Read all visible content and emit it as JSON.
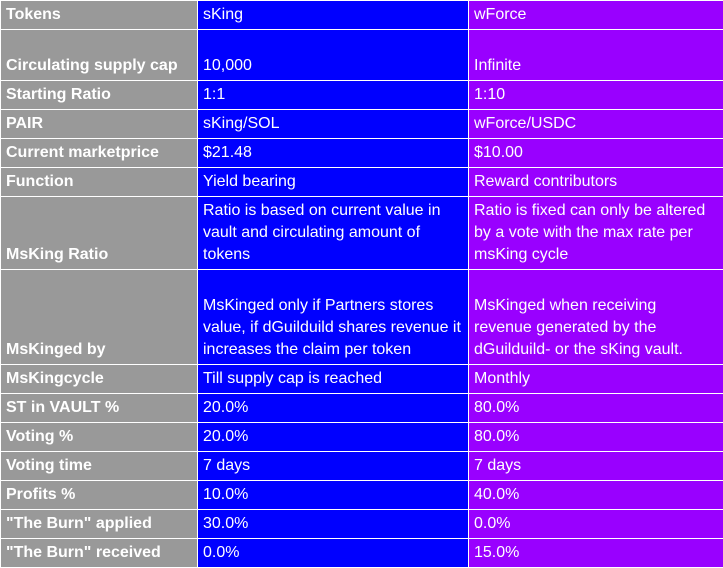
{
  "colors": {
    "label_bg": "#999999",
    "sking_bg": "#0000ff",
    "wforce_bg": "#9900ff",
    "text": "#ffffff"
  },
  "rows": [
    {
      "label": "Tokens",
      "sking": "sKing",
      "wforce": "wForce"
    },
    {
      "label": "Circulating supply cap",
      "sking": "10,000",
      "wforce": "Infinite"
    },
    {
      "label": "Starting Ratio",
      "sking": "1:1",
      "wforce": "1:10"
    },
    {
      "label": "PAIR",
      "sking": "sKing/SOL",
      "wforce": "wForce/USDC"
    },
    {
      "label": "Current marketprice",
      "sking": "$21.48",
      "wforce": "$10.00"
    },
    {
      "label": "Function",
      "sking": "Yield bearing",
      "wforce": "Reward contributors"
    },
    {
      "label": "MsKing Ratio",
      "sking": "Ratio is based on current value in vault and circulating amount of tokens",
      "wforce": "Ratio is fixed can only be altered by a vote with the max rate per msKing cycle"
    },
    {
      "label": "MsKinged by",
      "sking": "MsKinged only if Partners stores value, if dGuilduild shares revenue it increases the claim per token",
      "wforce": "MsKinged when receiving revenue generated by the dGuilduild- or the sKing vault."
    },
    {
      "label": "MsKingcycle",
      "sking": "Till supply cap is reached",
      "wforce": "Monthly"
    },
    {
      "label": "ST in VAULT %",
      "sking": "20.0%",
      "wforce": "80.0%"
    },
    {
      "label": "Voting %",
      "sking": "20.0%",
      "wforce": "80.0%"
    },
    {
      "label": "Voting time",
      "sking": "7 days",
      "wforce": "7 days"
    },
    {
      "label": "Profits %",
      "sking": "10.0%",
      "wforce": "40.0%"
    },
    {
      "label": "\"The Burn\" applied",
      "sking": "30.0%",
      "wforce": "0.0%"
    },
    {
      "label": "\"The Burn\" received",
      "sking": "0.0%",
      "wforce": "15.0%"
    }
  ]
}
